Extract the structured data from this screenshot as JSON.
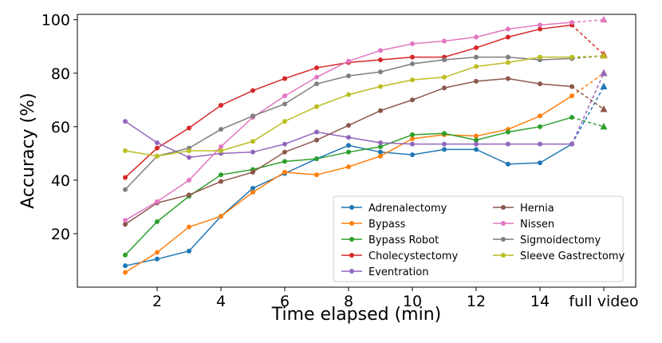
{
  "chart_data": {
    "type": "line",
    "xlabel": "Time elapsed (min)",
    "ylabel": "Accuracy (%)",
    "x": [
      1,
      2,
      3,
      4,
      5,
      6,
      7,
      8,
      9,
      10,
      11,
      12,
      13,
      14,
      15
    ],
    "xlim": [
      -0.5,
      17
    ],
    "ylim": [
      0,
      102
    ],
    "x_ticks": [
      {
        "value": 2,
        "label": "2"
      },
      {
        "value": 4,
        "label": "4"
      },
      {
        "value": 6,
        "label": "6"
      },
      {
        "value": 8,
        "label": "8"
      },
      {
        "value": 10,
        "label": "10"
      },
      {
        "value": 12,
        "label": "12"
      },
      {
        "value": 14,
        "label": "14"
      },
      {
        "value": 16,
        "label": "full video"
      }
    ],
    "y_ticks": [
      20,
      40,
      60,
      80,
      100
    ],
    "full_video_x": 16,
    "grid": false,
    "legend_position": "lower-right",
    "series": [
      {
        "name": "Adrenalectomy",
        "color": "#1f77b4",
        "values": [
          8,
          10.5,
          13.5,
          26.5,
          37,
          42.5,
          48,
          53,
          50.5,
          49.5,
          51.5,
          51.5,
          46,
          46.5,
          53.5
        ],
        "full_video": 75
      },
      {
        "name": "Bypass",
        "color": "#ff7f0e",
        "values": [
          5.5,
          13,
          22.5,
          26.5,
          35.5,
          43,
          42,
          45,
          49,
          55.5,
          57,
          56.5,
          59,
          64,
          71.5
        ],
        "full_video": 80
      },
      {
        "name": "Bypass Robot",
        "color": "#2ca02c",
        "values": [
          12,
          24.5,
          34,
          42,
          44,
          47,
          48,
          50.5,
          52.5,
          57,
          57.5,
          55,
          58,
          60,
          63.5
        ],
        "full_video": 60
      },
      {
        "name": "Cholecystectomy",
        "color": "#d62728",
        "values": [
          41,
          52,
          59.5,
          68,
          73.5,
          78,
          82,
          84,
          85,
          86,
          86,
          89.5,
          93.5,
          96.5,
          98
        ],
        "full_video": 87
      },
      {
        "name": "Eventration",
        "color": "#9467bd",
        "values": [
          62,
          54,
          48.5,
          50,
          50.5,
          53.5,
          58,
          56,
          54,
          53.5,
          53.5,
          53.5,
          53.5,
          53.5,
          53.5
        ],
        "full_video": 80
      },
      {
        "name": "Hernia",
        "color": "#8c564b",
        "values": [
          23.5,
          31.5,
          34.5,
          39.5,
          43,
          50.5,
          55,
          60.5,
          66,
          70,
          74.5,
          77,
          78,
          76,
          75
        ],
        "full_video": 66.5
      },
      {
        "name": "Nissen",
        "color": "#e377c2",
        "values": [
          25,
          32,
          40,
          52.5,
          63.5,
          71.5,
          78.5,
          84.5,
          88.5,
          91,
          92,
          93.5,
          96.5,
          98,
          99
        ],
        "full_video": 100
      },
      {
        "name": "Sigmoidectomy",
        "color": "#7f7f7f",
        "values": [
          36.5,
          49,
          52,
          59,
          64,
          68.5,
          76,
          79,
          80.5,
          83.5,
          85,
          86,
          86,
          85,
          85.5
        ],
        "full_video": 86.5
      },
      {
        "name": "Sleeve Gastrectomy",
        "color": "#bcbd22",
        "values": [
          51,
          49,
          51,
          51,
          54.5,
          62,
          67.5,
          72,
          75,
          77.5,
          78.5,
          82.5,
          84,
          86,
          86
        ],
        "full_video": 86.5
      }
    ]
  }
}
